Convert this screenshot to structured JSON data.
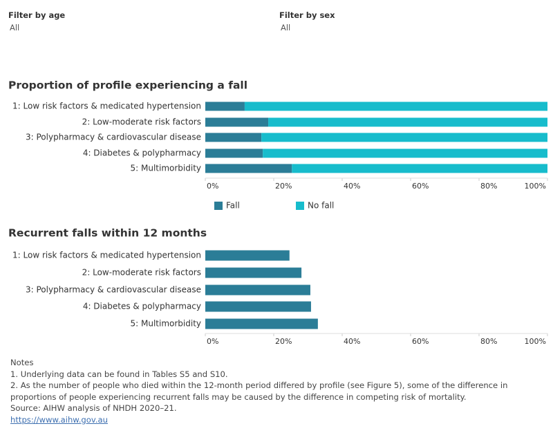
{
  "filters": [
    {
      "label": "Filter by age",
      "value": "All"
    },
    {
      "label": "Filter by sex",
      "value": "All"
    }
  ],
  "chart_data": [
    {
      "type": "bar",
      "orientation": "horizontal",
      "stacked": true,
      "title": "Proportion of profile experiencing a fall",
      "categories": [
        "1: Low risk factors & medicated hypertension",
        "2: Low-moderate risk factors",
        "3: Polypharmacy & cardiovascular disease",
        "4: Diabetes & polypharmacy",
        "5: Multimorbidity"
      ],
      "series": [
        {
          "name": "Fall",
          "color": "#2b7d97",
          "values": [
            11.5,
            18.4,
            16.4,
            16.8,
            25.3
          ]
        },
        {
          "name": "No fall",
          "color": "#17bccc",
          "values": [
            88.5,
            81.6,
            83.6,
            83.2,
            74.7
          ]
        }
      ],
      "xlim": [
        0,
        100
      ],
      "xticks": [
        {
          "value": 0,
          "label": "0%"
        },
        {
          "value": 20,
          "label": "20%"
        },
        {
          "value": 40,
          "label": "40%"
        },
        {
          "value": 60,
          "label": "60%"
        },
        {
          "value": 80,
          "label": "80%"
        },
        {
          "value": 100,
          "label": "100%"
        }
      ],
      "legend": "bottom"
    },
    {
      "type": "bar",
      "orientation": "horizontal",
      "title": "Recurrent falls within 12 months",
      "categories": [
        "1: Low risk factors & medicated hypertension",
        "2: Low-moderate risk factors",
        "3: Polypharmacy & cardiovascular disease",
        "4: Diabetes & polypharmacy",
        "5: Multimorbidity"
      ],
      "values": [
        24.6,
        28.1,
        30.7,
        30.9,
        32.9
      ],
      "color": "#2b7d97",
      "xlim": [
        0,
        100
      ],
      "xticks": [
        {
          "value": 0,
          "label": "0%"
        },
        {
          "value": 20,
          "label": "20%"
        },
        {
          "value": 40,
          "label": "40%"
        },
        {
          "value": 60,
          "label": "60%"
        },
        {
          "value": 80,
          "label": "80%"
        },
        {
          "value": 100,
          "label": "100%"
        }
      ]
    }
  ],
  "notes": {
    "heading": "Notes",
    "lines": [
      "1. Underlying data can be found in Tables S5 and S10.",
      "2. As the number of people who died within the 12-month period differed by profile (see Figure 5), some of the difference in proportions of people experiencing recurrent falls may be caused by the difference in competing risk of mortality.",
      "Source: AIHW analysis of NHDH 2020–21."
    ],
    "link": "https://www.aihw.gov.au"
  }
}
